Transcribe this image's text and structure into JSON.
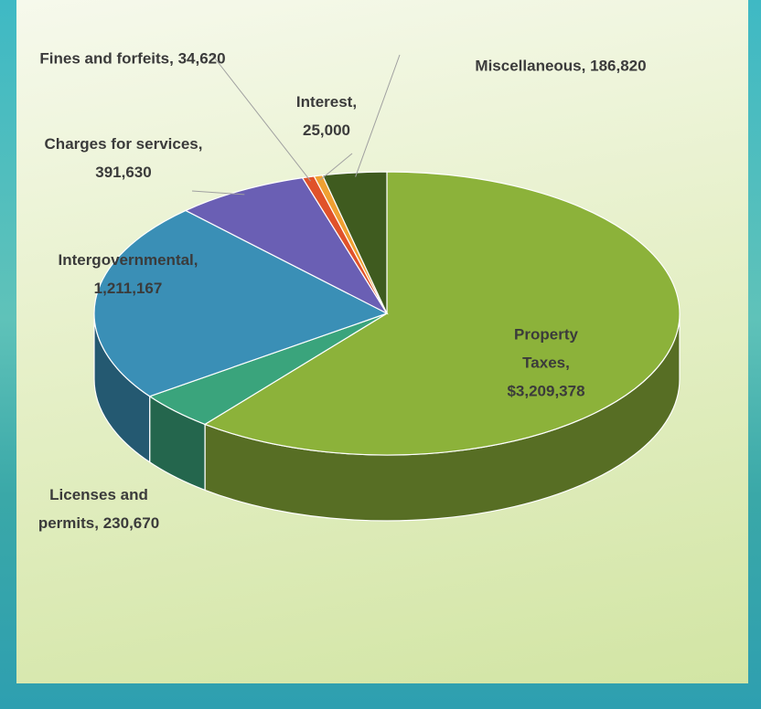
{
  "chart_data": {
    "type": "pie",
    "categories": [
      "Property Taxes",
      "Licenses and permits",
      "Intergovernmental",
      "Charges for services",
      "Fines and forfeits",
      "Interest",
      "Miscellaneous"
    ],
    "values": [
      3209378,
      230670,
      1211167,
      391630,
      34620,
      25000,
      186820
    ],
    "value_labels": [
      "$3,209,378",
      "230,670",
      "1,211,167",
      "391,630",
      "34,620",
      "25,000",
      "186,820"
    ],
    "separator": ",",
    "colors": [
      "#8cb23a",
      "#3aa47c",
      "#3a8fb6",
      "#6a5fb4",
      "#e0522a",
      "#f0a032",
      "#3f5b1f"
    ]
  }
}
